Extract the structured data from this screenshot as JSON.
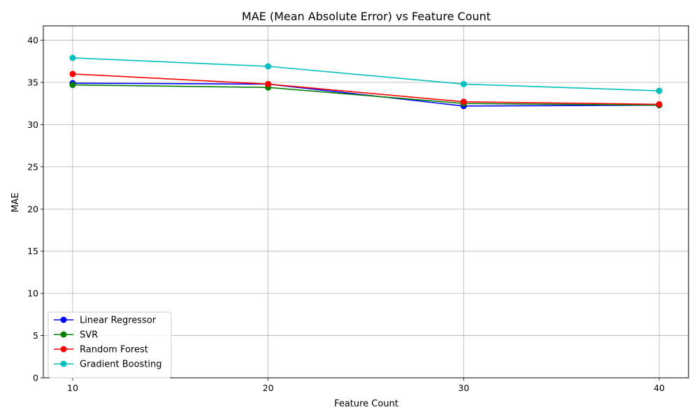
{
  "chart_data": {
    "type": "line",
    "title": "MAE (Mean Absolute Error) vs Feature Count",
    "xlabel": "Feature Count",
    "ylabel": "MAE",
    "x": [
      10,
      20,
      30,
      40
    ],
    "xticks": [
      "10",
      "20",
      "30",
      "40"
    ],
    "yticks": [
      "0",
      "5",
      "10",
      "15",
      "20",
      "25",
      "30",
      "35",
      "40"
    ],
    "xlim": [
      8.5,
      41.5
    ],
    "ylim": [
      0,
      41.7
    ],
    "grid": true,
    "legend_position": "lower-left",
    "series": [
      {
        "name": "Linear Regressor",
        "color": "#0000ff",
        "values": [
          34.9,
          34.8,
          32.2,
          32.3
        ]
      },
      {
        "name": "SVR",
        "color": "#008000",
        "values": [
          34.7,
          34.4,
          32.5,
          32.3
        ]
      },
      {
        "name": "Random Forest",
        "color": "#ff0000",
        "values": [
          36.0,
          34.8,
          32.7,
          32.4
        ]
      },
      {
        "name": "Gradient Boosting",
        "color": "#00bfbf",
        "values": [
          37.9,
          36.9,
          34.8,
          34.0
        ]
      }
    ]
  }
}
